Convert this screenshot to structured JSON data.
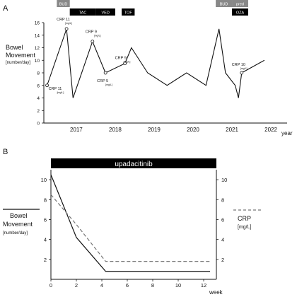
{
  "chart_data": [
    {
      "type": "line",
      "panel_label": "A",
      "ylabel": [
        "Bowel",
        "Movement",
        "[number/day]"
      ],
      "xlabel": "year",
      "x_ticks": [
        "2017",
        "2018",
        "2019",
        "2020",
        "2021",
        "2022"
      ],
      "y_ticks": [
        "0",
        "2",
        "4",
        "6",
        "8",
        "10",
        "12",
        "14",
        "16"
      ],
      "ylim": [
        0,
        16
      ],
      "xlim": [
        "2016-09",
        "2022-12"
      ],
      "series": [
        {
          "x": [
            "2016-10",
            "2017-04",
            "2017-06",
            "2017-12",
            "2018-04",
            "2018-10",
            "2018-12",
            "2019-05",
            "2019-11",
            "2020-05",
            "2020-11",
            "2021-03",
            "2021-05",
            "2021-08",
            "2021-09",
            "2021-10",
            "2022-05"
          ],
          "values": [
            6,
            15,
            4,
            13,
            8,
            9.5,
            12,
            8,
            6,
            8,
            6,
            15,
            8,
            6,
            4,
            8,
            10
          ]
        }
      ],
      "crp_labels": [
        {
          "text": "CRP 11",
          "unit": "[mg/L]",
          "x": "2016-10",
          "y": 6
        },
        {
          "text": "CRP 11",
          "unit": "[mg/L]",
          "x": "2017-04",
          "y": 15
        },
        {
          "text": "CRP 9",
          "unit": "[mg/L]",
          "x": "2017-12",
          "y": 13
        },
        {
          "text": "CRP 5",
          "unit": "[mg/L]",
          "x": "2018-04",
          "y": 8
        },
        {
          "text": "CRP 9",
          "unit": "[mg/L]",
          "x": "2018-10",
          "y": 9.5
        },
        {
          "text": "CRP 10",
          "unit": "[mg/L]",
          "x": "2021-10",
          "y": 8
        }
      ],
      "treatments": [
        {
          "label": "BUD",
          "start": "2017-01",
          "end": "2017-05",
          "row": 0,
          "color": "#888888"
        },
        {
          "label": "TAC",
          "start": "2017-05",
          "end": "2018-01",
          "row": 1,
          "color": "#000000"
        },
        {
          "label": "VED",
          "start": "2018-01",
          "end": "2018-07",
          "row": 1,
          "color": "#000000"
        },
        {
          "label": "TOF",
          "start": "2018-09",
          "end": "2019-01",
          "row": 1,
          "color": "#000000"
        },
        {
          "label": "BUD",
          "start": "2021-02",
          "end": "2021-07",
          "row": 0,
          "color": "#888888"
        },
        {
          "label": "pred",
          "start": "2021-07",
          "end": "2021-12",
          "row": 0,
          "color": "#888888"
        },
        {
          "label": "OZA",
          "start": "2021-07",
          "end": "2021-12",
          "row": 1,
          "color": "#000000"
        }
      ]
    },
    {
      "type": "line",
      "panel_label": "B",
      "title": "upadacitinib",
      "xlabel": "week",
      "x_ticks": [
        0,
        2,
        4,
        6,
        8,
        10,
        12
      ],
      "y_ticks_left": [
        2,
        4,
        6,
        8,
        10
      ],
      "y_ticks_right": [
        2,
        4,
        6,
        8,
        10
      ],
      "xlim": [
        0,
        13
      ],
      "ylim": [
        0,
        11
      ],
      "left_label": [
        "Bowel",
        "Movement",
        "[number/day]"
      ],
      "right_label": [
        "CRP",
        "[mg/L]"
      ],
      "series": [
        {
          "name": "Bowel Movement",
          "axis": "left",
          "style": "solid",
          "x": [
            0,
            2,
            4.3,
            12.5
          ],
          "values": [
            10.5,
            4.2,
            0.8,
            0.8
          ]
        },
        {
          "name": "CRP",
          "axis": "right",
          "style": "dashed",
          "x": [
            0,
            2,
            4.3,
            12.5
          ],
          "values": [
            8.5,
            5.5,
            1.8,
            1.8
          ]
        }
      ]
    }
  ],
  "colors": {
    "axis": "#111111",
    "line": "#111111",
    "dashed": "#777777",
    "bud": "#888888",
    "drug": "#000000"
  }
}
